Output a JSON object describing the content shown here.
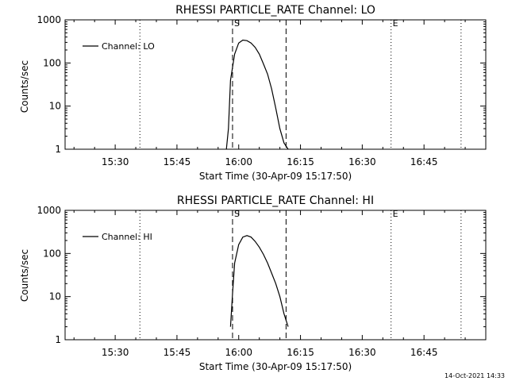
{
  "footer": {
    "timestamp": "14-Oct-2021 14:33"
  },
  "chart_data": [
    {
      "type": "line",
      "title": "RHESSI PARTICLE_RATE Channel: LO",
      "xlabel": "Start Time (30-Apr-09 15:17:50)",
      "ylabel": "Counts/sec",
      "yscale": "log",
      "ylim": [
        1,
        1000
      ],
      "xlim": [
        "15:17:50",
        "17:00:00"
      ],
      "x_ticks": [
        "15:30",
        "15:45",
        "16:00",
        "16:15",
        "16:30",
        "16:45"
      ],
      "y_ticks": [
        "1",
        "10",
        "100",
        "1000"
      ],
      "legend_position": "top-left",
      "series": [
        {
          "name": "Channel: LO",
          "x": [
            "15:57",
            "15:57:30",
            "15:58",
            "15:59",
            "16:00",
            "16:01",
            "16:02",
            "16:03",
            "16:04",
            "16:05",
            "16:06",
            "16:07",
            "16:08",
            "16:09",
            "16:10",
            "16:11",
            "16:12"
          ],
          "y": [
            1,
            3,
            40,
            160,
            290,
            340,
            330,
            290,
            230,
            160,
            95,
            55,
            25,
            9,
            3,
            1.4,
            1
          ]
        }
      ],
      "markers": [
        {
          "label": "S",
          "time": "15:58:30",
          "style": "dashed"
        },
        {
          "label": "",
          "time": "16:11:30",
          "style": "dashed"
        },
        {
          "label": "",
          "time": "15:36",
          "style": "dotted"
        },
        {
          "label": "E",
          "time": "16:37",
          "style": "dotted"
        },
        {
          "label": "",
          "time": "16:54",
          "style": "dotted"
        }
      ]
    },
    {
      "type": "line",
      "title": "RHESSI PARTICLE_RATE Channel: HI",
      "xlabel": "Start Time (30-Apr-09 15:17:50)",
      "ylabel": "Counts/sec",
      "yscale": "log",
      "ylim": [
        1,
        1000
      ],
      "xlim": [
        "15:17:50",
        "17:00:00"
      ],
      "x_ticks": [
        "15:30",
        "15:45",
        "16:00",
        "16:15",
        "16:30",
        "16:45"
      ],
      "y_ticks": [
        "1",
        "10",
        "100",
        "1000"
      ],
      "legend_position": "top-left",
      "series": [
        {
          "name": "Channel: HI",
          "x": [
            "15:58",
            "15:58:30",
            "15:59",
            "16:00",
            "16:01",
            "16:02",
            "16:03",
            "16:04",
            "16:05",
            "16:06",
            "16:07",
            "16:08",
            "16:09",
            "16:10",
            "16:11",
            "16:12"
          ],
          "y": [
            2,
            12,
            60,
            160,
            240,
            260,
            240,
            190,
            140,
            95,
            60,
            35,
            20,
            10,
            4,
            2
          ]
        }
      ],
      "markers": [
        {
          "label": "S",
          "time": "15:58:30",
          "style": "dashed"
        },
        {
          "label": "",
          "time": "16:11:30",
          "style": "dashed"
        },
        {
          "label": "",
          "time": "15:36",
          "style": "dotted"
        },
        {
          "label": "E",
          "time": "16:37",
          "style": "dotted"
        },
        {
          "label": "",
          "time": "16:54",
          "style": "dotted"
        }
      ]
    }
  ]
}
